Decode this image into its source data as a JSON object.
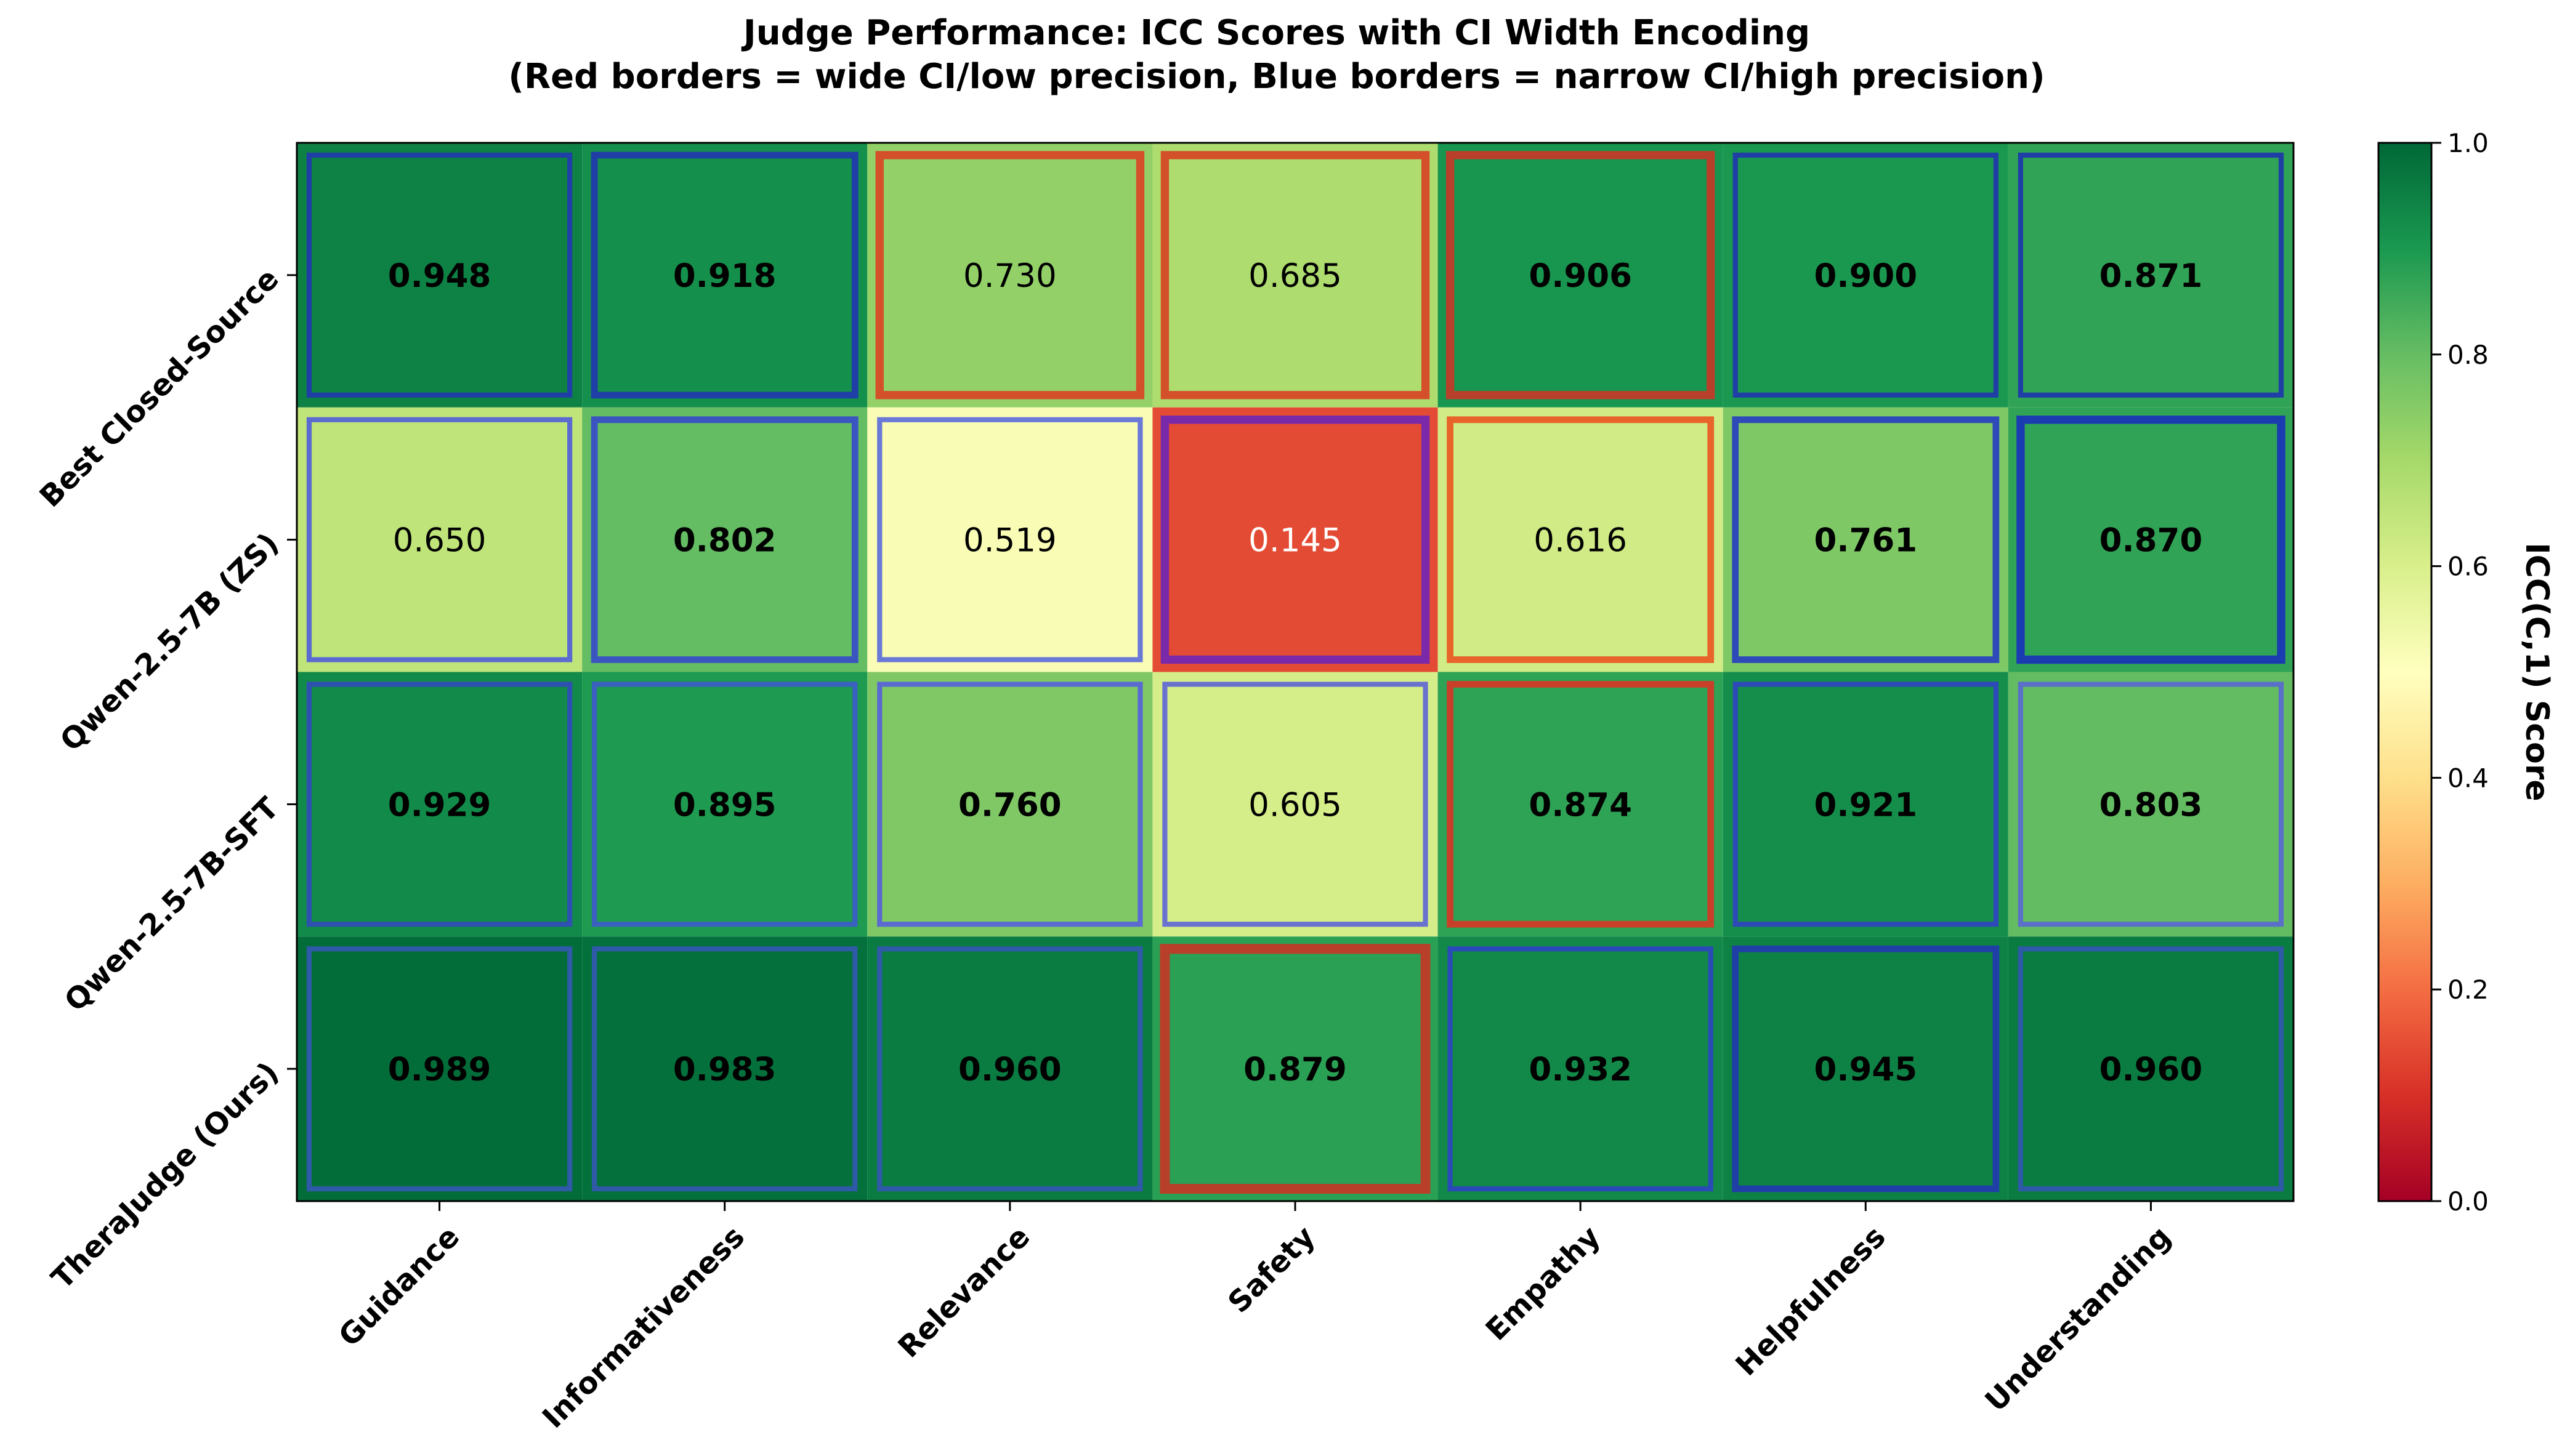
{
  "chart_data": {
    "type": "heatmap",
    "title_line1": "Judge Performance: ICC Scores with CI Width Encoding",
    "title_line2": "(Red borders = wide CI/low precision, Blue borders = narrow CI/high precision)",
    "rows": [
      "Best Closed-Source",
      "Qwen-2.5-7B (ZS)",
      "Qwen-2.5-7B-SFT",
      "TheraJudge (Ours)"
    ],
    "columns": [
      "Guidance",
      "Informativeness",
      "Relevance",
      "Safety",
      "Empathy",
      "Helpfulness",
      "Understanding"
    ],
    "values": [
      [
        0.948,
        0.918,
        0.73,
        0.685,
        0.906,
        0.9,
        0.871
      ],
      [
        0.65,
        0.802,
        0.519,
        0.145,
        0.616,
        0.761,
        0.87
      ],
      [
        0.929,
        0.895,
        0.76,
        0.605,
        0.874,
        0.921,
        0.803
      ],
      [
        0.989,
        0.983,
        0.96,
        0.879,
        0.932,
        0.945,
        0.96
      ]
    ],
    "labels": [
      [
        "0.948",
        "0.918",
        "0.730",
        "0.685",
        "0.906",
        "0.900",
        "0.871"
      ],
      [
        "0.650",
        "0.802",
        "0.519",
        "0.145",
        "0.616",
        "0.761",
        "0.870"
      ],
      [
        "0.929",
        "0.895",
        "0.760",
        "0.605",
        "0.874",
        "0.921",
        "0.803"
      ],
      [
        "0.989",
        "0.983",
        "0.960",
        "0.879",
        "0.932",
        "0.945",
        "0.960"
      ]
    ],
    "bold_label": [
      [
        true,
        true,
        false,
        false,
        true,
        true,
        true
      ],
      [
        false,
        true,
        false,
        false,
        false,
        true,
        true
      ],
      [
        true,
        true,
        true,
        false,
        true,
        true,
        true
      ],
      [
        true,
        true,
        true,
        true,
        true,
        true,
        true
      ]
    ],
    "ci_border_color": [
      [
        "#1f3fa6",
        "#1f3fa6",
        "#d4502a",
        "#d4502a",
        "#b8402a",
        "#1f3fa6",
        "#1f3fa6"
      ],
      [
        "#5a6ad0",
        "#3a55c0",
        "#6a78d8",
        "#7a2aa8",
        "#e8642a",
        "#2d4ab8",
        "#1a3cb0"
      ],
      [
        "#2e50b0",
        "#3a60c0",
        "#5a6ad0",
        "#6a72d0",
        "#c8402a",
        "#2d4ab8",
        "#5a70c8"
      ],
      [
        "#2e5aa8",
        "#2e5aa8",
        "#2e5aa8",
        "#b8402a",
        "#2a4ab8",
        "#1f3fa6",
        "#2e5aa8"
      ]
    ],
    "ci_border_weight": [
      [
        2,
        3,
        4,
        4,
        4,
        2,
        2
      ],
      [
        2,
        3,
        2,
        4,
        3,
        3,
        4
      ],
      [
        2,
        2,
        2,
        2,
        3,
        2,
        2
      ],
      [
        2,
        2,
        2,
        5,
        2,
        3,
        2
      ]
    ],
    "colorbar": {
      "label": "ICC(C,1) Score",
      "range": [
        0.0,
        1.0
      ],
      "ticks": [
        "0.0",
        "0.2",
        "0.4",
        "0.6",
        "0.8",
        "1.0"
      ],
      "colormap": "RdYlGn"
    }
  }
}
